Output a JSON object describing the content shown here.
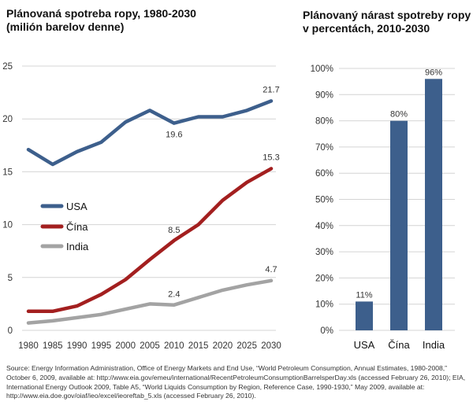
{
  "chart_data": [
    {
      "type": "line",
      "title": "Plánovaná spotreba ropy, 1980-2030",
      "subtitle": "(milión barelov denne)",
      "x": [
        1980,
        1985,
        1990,
        1995,
        2000,
        2005,
        2010,
        2015,
        2020,
        2025,
        2030
      ],
      "ylim": [
        0,
        25
      ],
      "yticks": [
        "0",
        "5",
        "10",
        "15",
        "20",
        "25"
      ],
      "xticks": [
        "1980",
        "1985",
        "1990",
        "1995",
        "2000",
        "2005",
        "2010",
        "2015",
        "2020",
        "2025",
        "2030"
      ],
      "grid": "horizontal",
      "legend_position": "middle-left",
      "series": [
        {
          "name": "USA",
          "color": "#3d5f8c",
          "values": [
            17.1,
            15.7,
            16.9,
            17.8,
            19.7,
            20.8,
            19.6,
            20.2,
            20.2,
            20.8,
            21.7
          ],
          "labels": [
            {
              "index": 6,
              "text": "19.6"
            },
            {
              "index": 10,
              "text": "21.7"
            }
          ]
        },
        {
          "name": "Čína",
          "color": "#a31f1f",
          "values": [
            1.8,
            1.8,
            2.3,
            3.4,
            4.8,
            6.7,
            8.5,
            10.0,
            12.3,
            14.0,
            15.3
          ],
          "labels": [
            {
              "index": 6,
              "text": "8.5"
            },
            {
              "index": 10,
              "text": "15.3"
            }
          ]
        },
        {
          "name": "India",
          "color": "#a3a3a3",
          "values": [
            0.7,
            0.9,
            1.2,
            1.5,
            2.0,
            2.5,
            2.4,
            3.1,
            3.8,
            4.3,
            4.7
          ],
          "labels": [
            {
              "index": 6,
              "text": "2.4"
            },
            {
              "index": 10,
              "text": "4.7"
            }
          ]
        }
      ]
    },
    {
      "type": "bar",
      "title": "Plánovaný nárast spotreby ropy",
      "subtitle": "v percentách, 2010-2030",
      "categories": [
        "USA",
        "Čína",
        "India"
      ],
      "values": [
        11,
        80,
        96
      ],
      "value_labels": [
        "11%",
        "80%",
        "96%"
      ],
      "ylim": [
        0,
        100
      ],
      "yticks": [
        "0%",
        "10%",
        "20%",
        "30%",
        "40%",
        "50%",
        "60%",
        "70%",
        "80%",
        "90%",
        "100%"
      ],
      "grid": "horizontal",
      "color": "#3d5f8c"
    }
  ],
  "source": "Source: Energy Information Administration, Office of Energy Markets and End Use, “World Petroleum Consumption, Annual Estimates, 1980-2008,” October 6, 2009, available at: http://www.eia.gov/emeu/international/RecentPetroleumConsumptionBarrelsperDay.xls (accessed February 26, 2010); EIA, International Energy Outlook 2009, Table A5, “World Liquids Consumption by Region, Reference Case, 1990-1930,” May 2009, available at: http://www.eia.doe.gov/oiaf/ieo/excel/ieoreftab_5.xls (accessed February 26, 2010)."
}
